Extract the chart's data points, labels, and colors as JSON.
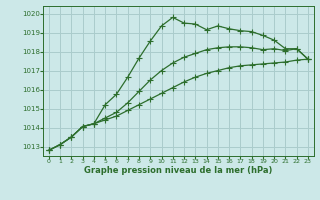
{
  "title": "Graphe pression niveau de la mer (hPa)",
  "bg_color": "#cce8e8",
  "grid_color": "#aacccc",
  "line_color": "#2d6e2d",
  "marker_color": "#2d6e2d",
  "xlim": [
    -0.5,
    23.5
  ],
  "ylim": [
    1012.5,
    1020.4
  ],
  "xticks": [
    0,
    1,
    2,
    3,
    4,
    5,
    6,
    7,
    8,
    9,
    10,
    11,
    12,
    13,
    14,
    15,
    16,
    17,
    18,
    19,
    20,
    21,
    22,
    23
  ],
  "yticks": [
    1013,
    1014,
    1015,
    1016,
    1017,
    1018,
    1019,
    1020
  ],
  "line1_x": [
    0,
    1,
    2,
    3,
    4,
    5,
    6,
    7,
    8,
    9,
    10,
    11,
    12,
    13,
    14,
    15,
    16,
    17,
    18,
    19,
    20,
    21,
    22,
    23
  ],
  "line1_y": [
    1012.8,
    1013.1,
    1013.5,
    1014.05,
    1014.2,
    1015.2,
    1015.75,
    1016.65,
    1017.65,
    1018.55,
    1019.35,
    1019.8,
    1019.5,
    1019.45,
    1019.15,
    1019.35,
    1019.2,
    1019.1,
    1019.05,
    1018.85,
    1018.6,
    1018.15,
    1018.15,
    1017.6
  ],
  "line2_x": [
    0,
    1,
    2,
    3,
    4,
    5,
    6,
    7,
    8,
    9,
    10,
    11,
    12,
    13,
    14,
    15,
    16,
    17,
    18,
    19,
    20,
    21,
    22,
    23
  ],
  "line2_y": [
    1012.8,
    1013.1,
    1013.5,
    1014.05,
    1014.2,
    1014.5,
    1014.8,
    1015.3,
    1015.9,
    1016.5,
    1017.0,
    1017.4,
    1017.7,
    1017.9,
    1018.1,
    1018.2,
    1018.25,
    1018.25,
    1018.2,
    1018.1,
    1018.15,
    1018.05,
    1018.15,
    1017.6
  ],
  "line3_x": [
    0,
    1,
    2,
    3,
    4,
    5,
    6,
    7,
    8,
    9,
    10,
    11,
    12,
    13,
    14,
    15,
    16,
    17,
    18,
    19,
    20,
    21,
    22,
    23
  ],
  "line3_y": [
    1012.8,
    1013.1,
    1013.5,
    1014.05,
    1014.2,
    1014.4,
    1014.6,
    1014.9,
    1015.2,
    1015.5,
    1015.8,
    1016.1,
    1016.4,
    1016.65,
    1016.85,
    1017.0,
    1017.15,
    1017.25,
    1017.3,
    1017.35,
    1017.4,
    1017.45,
    1017.55,
    1017.6
  ],
  "xlabel_fontsize": 5.5,
  "ylabel_fontsize": 5.5,
  "title_fontsize": 6.0,
  "lw": 0.9,
  "ms": 2.0
}
